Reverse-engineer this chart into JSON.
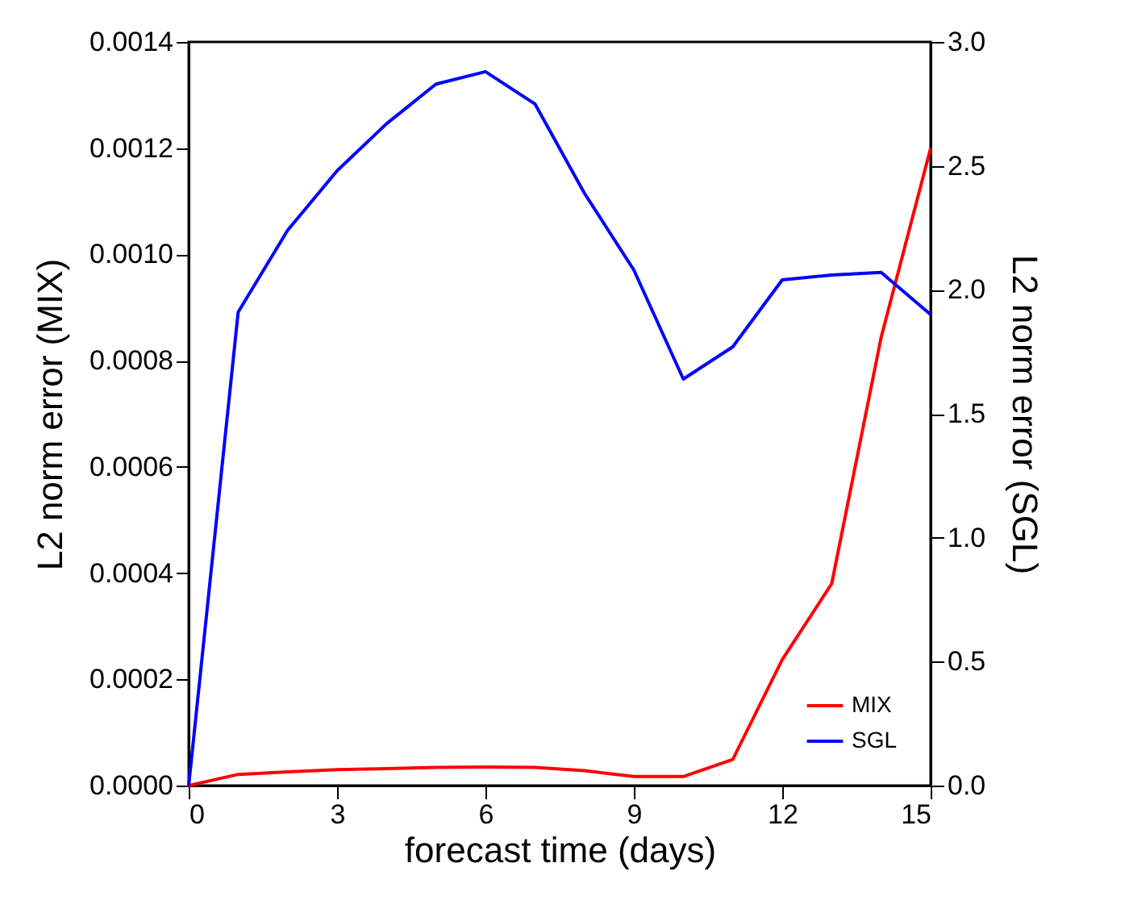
{
  "chart_data": {
    "type": "line",
    "xlabel": "forecast time (days)",
    "ylabel": "L2 norm error (MIX)",
    "y2label": "L2 norm error (SGL)",
    "x": [
      0,
      1,
      2,
      3,
      4,
      5,
      6,
      7,
      8,
      9,
      10,
      11,
      12,
      13,
      14,
      15
    ],
    "series": [
      {
        "name": "MIX",
        "color": "#ff0000",
        "values": [
          0,
          2.1e-05,
          2.6e-05,
          3e-05,
          3.2e-05,
          3.4e-05,
          3.5e-05,
          3.4e-05,
          2.8e-05,
          1.7e-05,
          1.7e-05,
          4.9e-05,
          0.000237,
          0.00038,
          0.000844,
          0.0012
        ]
      },
      {
        "name": "SGL",
        "color": "#0000ff",
        "axis": "y2",
        "values": [
          0,
          1.91,
          2.24,
          2.48,
          2.67,
          2.83,
          2.88,
          2.75,
          2.39,
          2.08,
          1.64,
          1.77,
          2.04,
          2.06,
          2.07,
          1.9
        ]
      }
    ],
    "xlim": [
      0,
      15
    ],
    "xticks": [
      0,
      3,
      6,
      9,
      12,
      15
    ],
    "ylim": [
      0,
      0.0014
    ],
    "yticks": [
      {
        "value": 0,
        "label": "0.0000"
      },
      {
        "value": 0.0002,
        "label": "0.0002"
      },
      {
        "value": 0.0004,
        "label": "0.0004"
      },
      {
        "value": 0.0006,
        "label": "0.0006"
      },
      {
        "value": 0.0008,
        "label": "0.0008"
      },
      {
        "value": 0.001,
        "label": "0.0010"
      },
      {
        "value": 0.0012,
        "label": "0.0012"
      },
      {
        "value": 0.0014,
        "label": "0.0014"
      }
    ],
    "y2lim": [
      0,
      3
    ],
    "y2ticks": [
      {
        "value": 0,
        "label": "0.0"
      },
      {
        "value": 0.5,
        "label": "0.5"
      },
      {
        "value": 1,
        "label": "1.0"
      },
      {
        "value": 1.5,
        "label": "1.5"
      },
      {
        "value": 2,
        "label": "2.0"
      },
      {
        "value": 2.5,
        "label": "2.5"
      },
      {
        "value": 3,
        "label": "3.0"
      }
    ],
    "legend": "bottom right",
    "grid": false
  }
}
